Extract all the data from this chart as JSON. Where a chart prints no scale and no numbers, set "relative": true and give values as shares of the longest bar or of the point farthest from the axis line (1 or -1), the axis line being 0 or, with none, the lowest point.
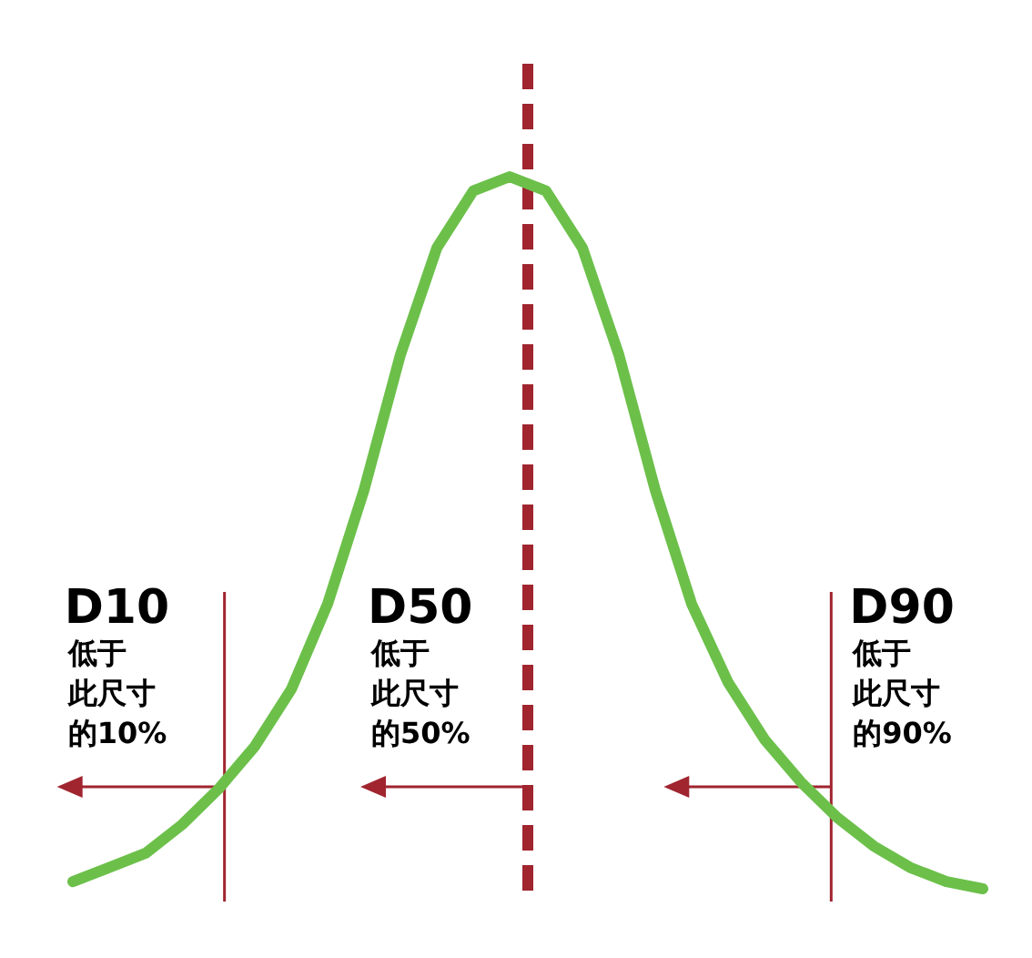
{
  "chart_data": {
    "type": "line",
    "relative": true,
    "line_style": "solid",
    "categories": [
      null,
      null,
      null,
      null,
      null,
      null,
      null,
      null,
      null,
      null,
      null,
      null,
      null,
      null,
      null,
      null,
      null,
      null,
      null,
      null,
      null,
      null,
      null,
      null,
      null,
      null
    ],
    "series": [
      {
        "color": "#6cc04a",
        "values": [
          0.01,
          0.03,
          0.05,
          0.09,
          0.14,
          0.2,
          0.28,
          0.4,
          0.56,
          0.75,
          0.9,
          0.98,
          1,
          0.98,
          0.9,
          0.75,
          0.56,
          0.4,
          0.29,
          0.21,
          0.15,
          0.1,
          0.06,
          0.03,
          0.01,
          0
        ]
      }
    ],
    "annotations": [
      "D10",
      "低于此尺寸的10%",
      "D50",
      "低于此尺寸的50%",
      "D90",
      "低于此尺寸的90%"
    ]
  }
}
